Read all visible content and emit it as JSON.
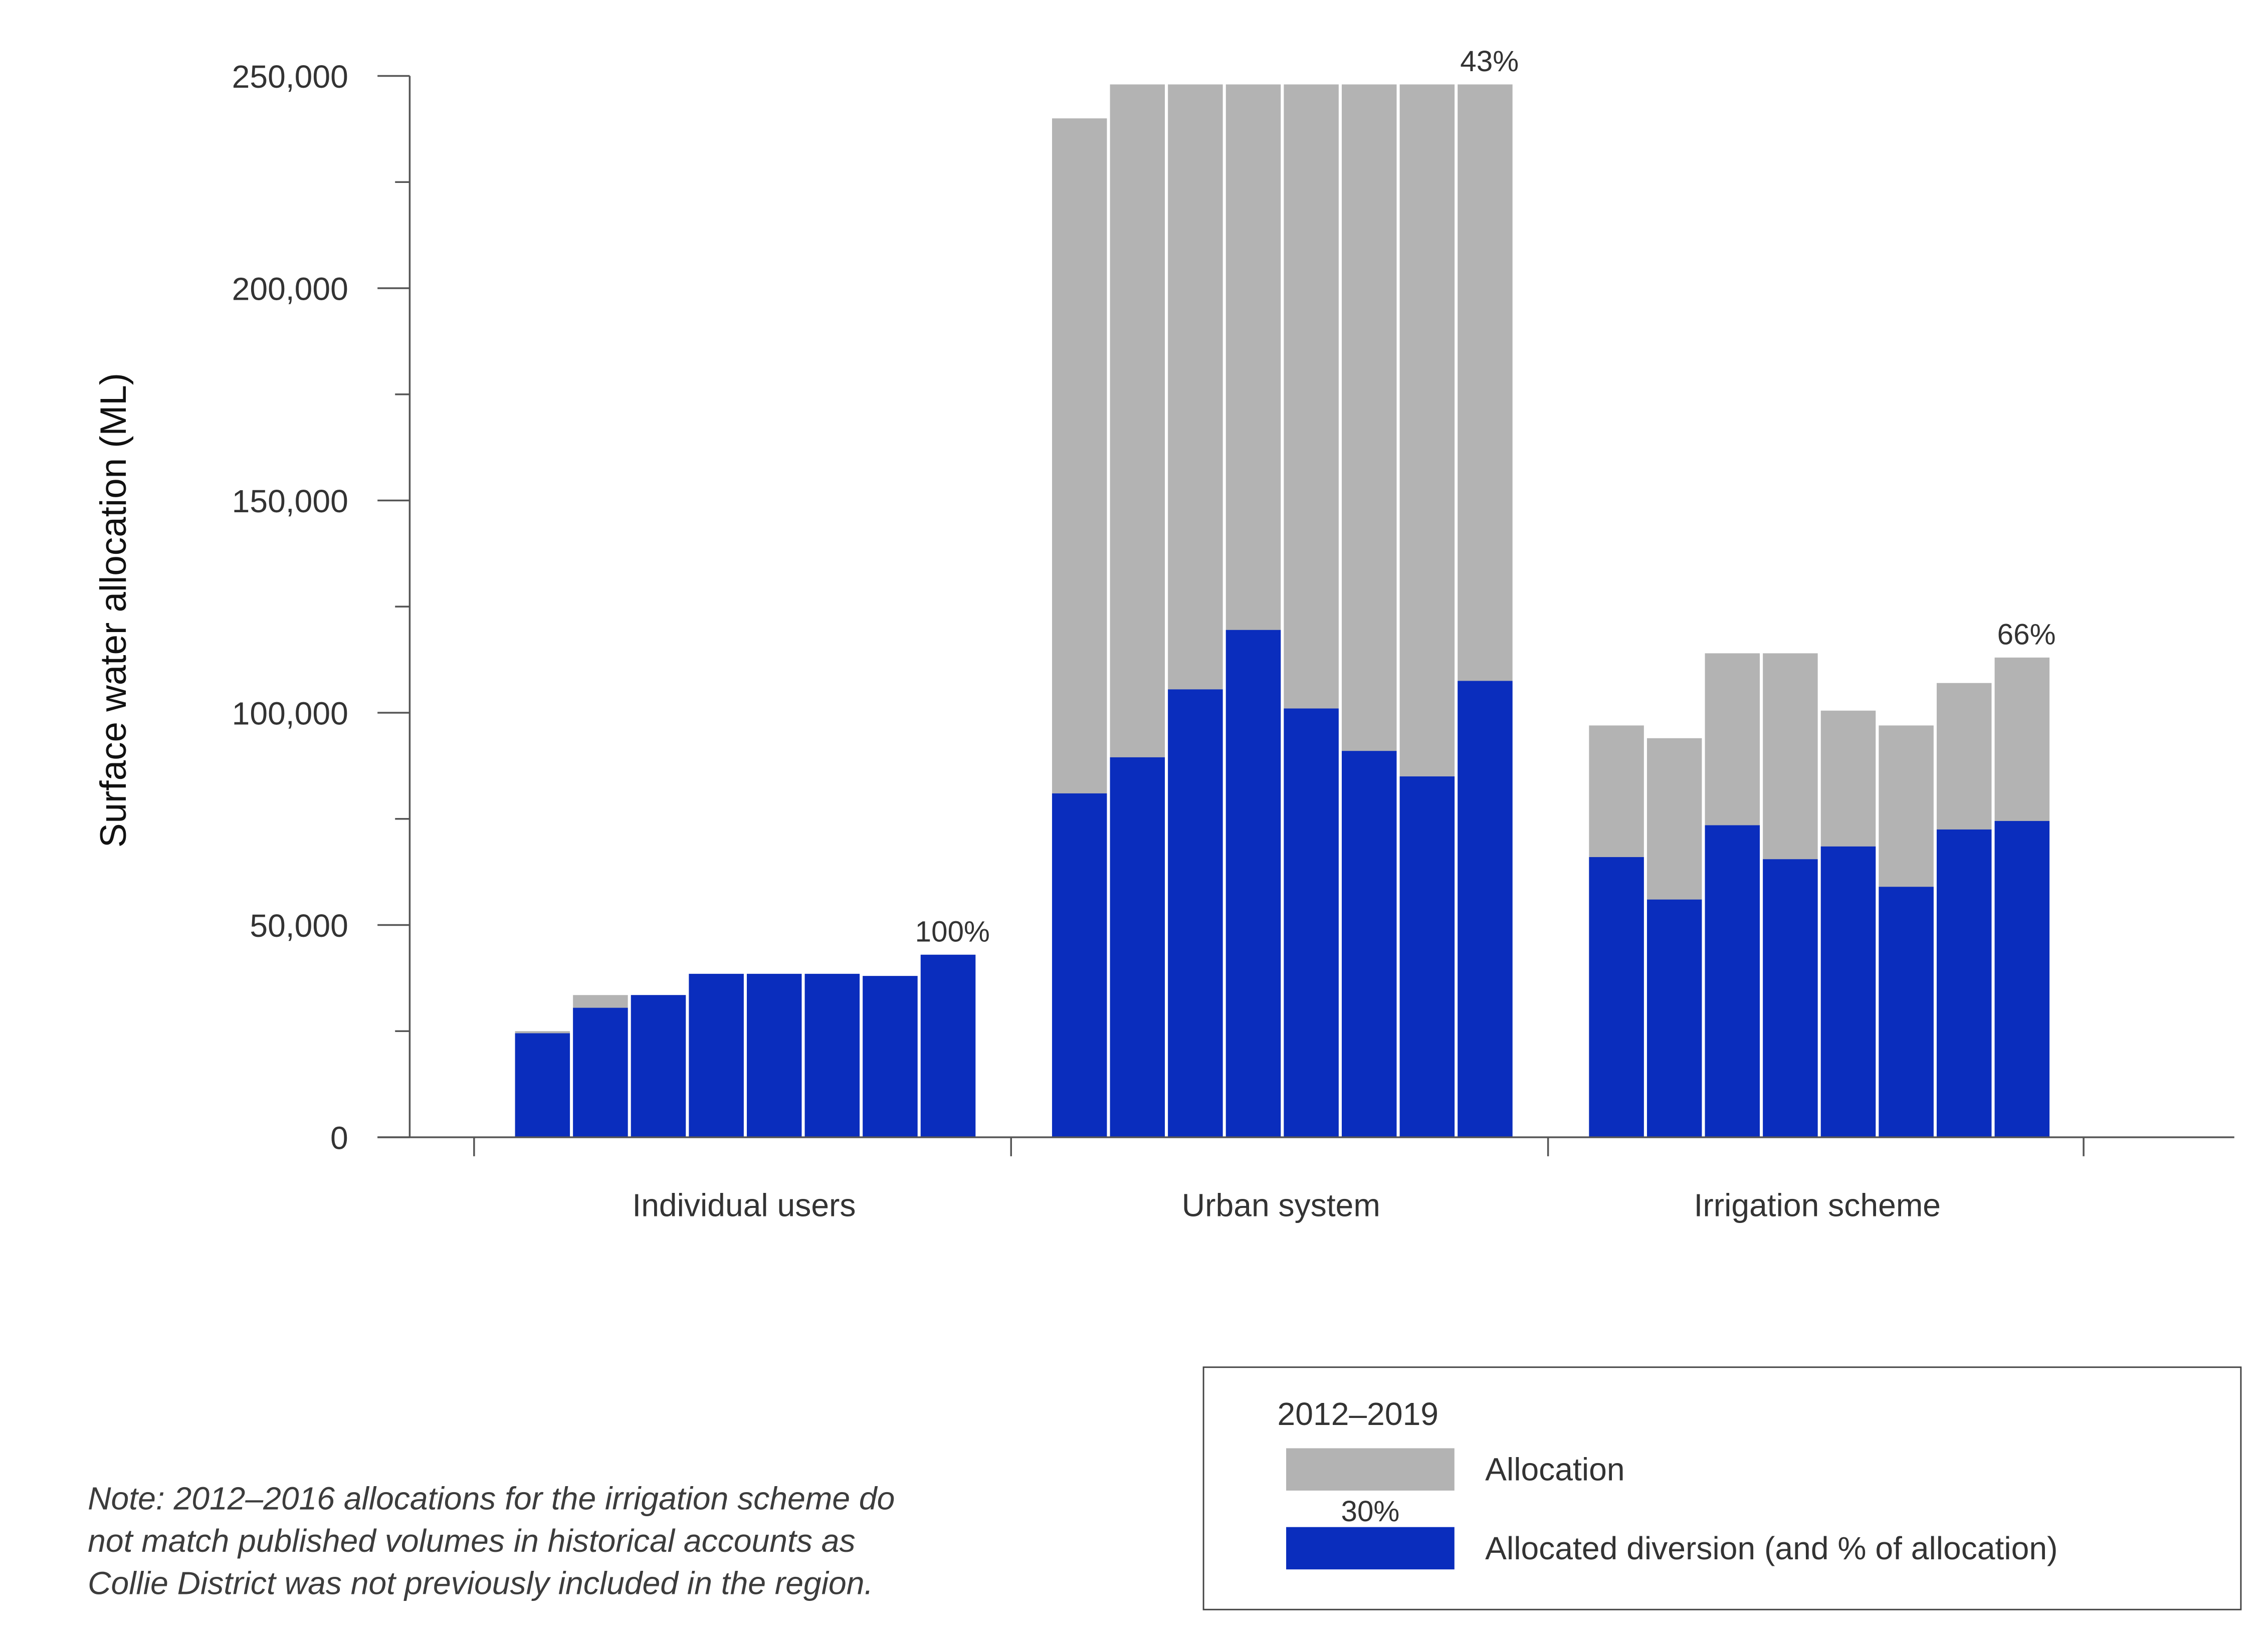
{
  "chart_data": {
    "type": "bar",
    "stacking": "overlay",
    "ylabel": "Surface water allocation (ML)",
    "ylim": [
      0,
      250000
    ],
    "yticks": [
      0,
      50000,
      100000,
      150000,
      200000,
      250000
    ],
    "ytick_labels": [
      "0",
      "50,000",
      "100,000",
      "150,000",
      "200,000",
      "250,000"
    ],
    "groups": [
      {
        "label": "Individual users",
        "allocation": [
          25000,
          33500,
          33500,
          38500,
          38500,
          38500,
          38000,
          43000
        ],
        "allocated_diversion": [
          24500,
          30500,
          33500,
          38500,
          38500,
          38500,
          38000,
          43000
        ],
        "annotation": "100%"
      },
      {
        "label": "Urban system",
        "allocation": [
          240000,
          248000,
          248000,
          248000,
          248000,
          248000,
          248000,
          248000
        ],
        "allocated_diversion": [
          81000,
          89500,
          105500,
          119500,
          101000,
          91000,
          85000,
          107500
        ],
        "annotation": "43%"
      },
      {
        "label": "Irrigation scheme",
        "allocation": [
          97000,
          94000,
          114000,
          114000,
          100500,
          97000,
          107000,
          113000
        ],
        "allocated_diversion": [
          66000,
          56000,
          73500,
          65500,
          68500,
          59000,
          72500,
          74500
        ],
        "annotation": "66%"
      }
    ],
    "colors": {
      "allocation": "#b3b3b3",
      "allocated_diversion": "#0a2dbd"
    },
    "grid": false,
    "legend": {
      "placement": "bottom-right",
      "title": "2012–2019",
      "entries": [
        "Allocation",
        "Allocated diversion (and % of allocation)"
      ],
      "example_pct": "30%"
    }
  },
  "note": "Note: 2012–2016 allocations for the irrigation scheme do\nnot match published volumes in historical accounts as\nCollie District was not previously included in the region."
}
